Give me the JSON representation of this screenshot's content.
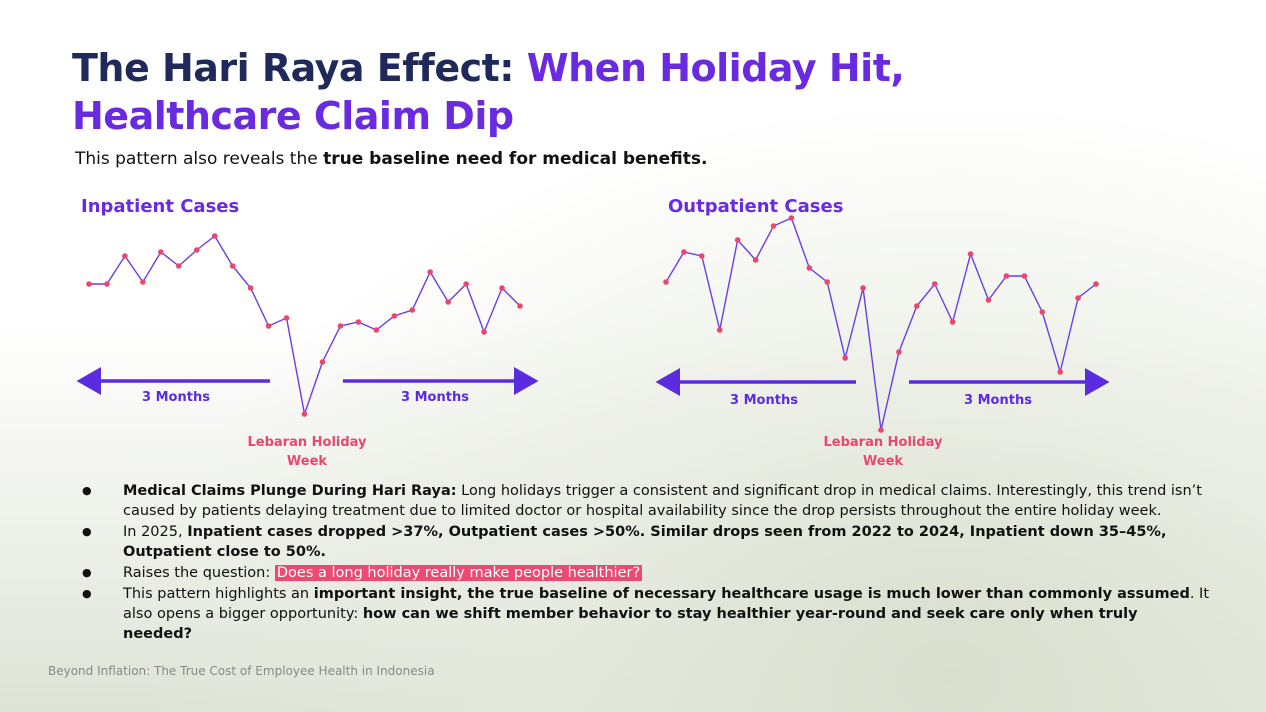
{
  "title": [
    "The Hari Raya Effect: ",
    "When Holiday Hit, Healthcare Claim Dip"
  ],
  "subtitle": [
    "This pattern also reveals the ",
    "true baseline need for medical benefits."
  ],
  "chart_data": [
    {
      "type": "line",
      "title": "Inpatient Cases",
      "color": "#6a3de8",
      "marker_color": "#e8476e",
      "values": [
        68,
        68,
        82,
        69,
        84,
        77,
        85,
        92,
        77,
        66,
        47,
        51,
        3,
        29,
        47,
        49,
        45,
        52,
        55,
        74,
        59,
        68,
        44,
        66,
        57
      ],
      "ylim": [
        0,
        100
      ],
      "annotations": [
        "3 Months",
        "3 Months",
        "Lebaran Holiday Week"
      ]
    },
    {
      "type": "line",
      "title": "Outpatient Cases",
      "color": "#6a3de8",
      "marker_color": "#e8476e",
      "values": [
        79,
        94,
        92,
        55,
        100,
        90,
        107,
        111,
        86,
        79,
        41,
        76,
        5,
        44,
        67,
        78,
        59,
        93,
        70,
        82,
        82,
        64,
        34,
        71,
        78
      ],
      "ylim": [
        0,
        120
      ],
      "annotations": [
        "3 Months",
        "3 Months",
        "Lebaran Holiday Week"
      ]
    }
  ],
  "bullets": [
    [
      {
        "text": "Medical Claims Plunge During Hari Raya:",
        "style": "bold"
      },
      {
        "text": " Long holidays trigger a consistent and significant drop in medical claims. Interestingly, this trend isn’t caused by patients delaying treatment due to limited doctor or hospital availability since the drop persists throughout the entire holiday week.",
        "style": "normal"
      }
    ],
    [
      {
        "text": "In 2025, ",
        "style": "normal"
      },
      {
        "text": "Inpatient cases dropped >37%, Outpatient cases >50%. Similar drops seen from 2022 to 2024,  Inpatient down 35–45%, Outpatient close to 50%.",
        "style": "bold"
      }
    ],
    [
      {
        "text": "Raises the question: ",
        "style": "normal"
      },
      {
        "text": "Does a long holiday really make people healthier?",
        "style": "highlight"
      }
    ],
    [
      {
        "text": "This pattern highlights an ",
        "style": "normal"
      },
      {
        "text": "important insight, the true baseline of necessary healthcare usage is much lower than commonly assumed",
        "style": "bold"
      },
      {
        "text": ". It also opens a bigger opportunity: ",
        "style": "normal"
      },
      {
        "text": "how can we shift member behavior to stay healthier year-round and seek care only when truly needed?",
        "style": "bold"
      }
    ]
  ],
  "footer": "Beyond Inflation: The True Cost of Employee Health in Indonesia"
}
